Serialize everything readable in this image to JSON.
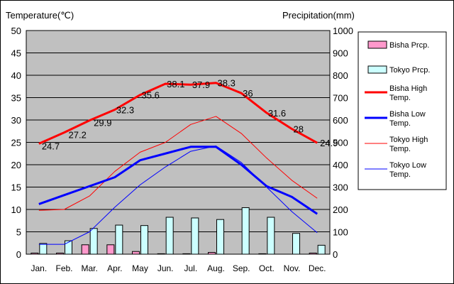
{
  "chart_data": {
    "type": "bar+line",
    "title": "",
    "left_axis_title": "Temperature(℃)",
    "right_axis_title": "Precipitation(mm)",
    "categories": [
      "Jan.",
      "Feb.",
      "Mar.",
      "Apr.",
      "May",
      "Jun.",
      "Jul.",
      "Aug.",
      "Sep.",
      "Oct.",
      "Nov.",
      "Dec."
    ],
    "left_ylim": [
      0,
      50
    ],
    "left_ticks": [
      "0",
      "5",
      "10",
      "15",
      "20",
      "25",
      "30",
      "35",
      "40",
      "45",
      "50"
    ],
    "right_ylim": [
      0,
      1000
    ],
    "right_ticks": [
      "0",
      "100",
      "200",
      "300",
      "400",
      "500",
      "600",
      "700",
      "800",
      "900",
      "1000"
    ],
    "grid": "horizontal",
    "plot_background": "#c0c0c0",
    "legend_position": "right",
    "bars": [
      {
        "name": "Bisha Prcp.",
        "color": "#ff99cc",
        "values": [
          5,
          5,
          42,
          42,
          12,
          2,
          2,
          8,
          0,
          2,
          0,
          5
        ]
      },
      {
        "name": "Tokyo Prcp.",
        "color": "#ccffff",
        "values": [
          48,
          60,
          115,
          130,
          128,
          165,
          162,
          155,
          208,
          165,
          93,
          40
        ]
      }
    ],
    "lines": [
      {
        "name": "Bisha High Temp.",
        "color": "#ff0000",
        "width": 3,
        "values": [
          24.7,
          27.2,
          29.9,
          32.3,
          35.6,
          38.1,
          37.9,
          38.3,
          36,
          31.6,
          28,
          24.9
        ],
        "labels": [
          "24.7",
          "27.2",
          "29.9",
          "32.3",
          "35.6",
          "38.1",
          "37.9",
          "38.3",
          "36",
          "31.6",
          "28",
          "24.9"
        ]
      },
      {
        "name": "Bisha Low Temp.",
        "color": "#0000ff",
        "width": 3,
        "values": [
          11.2,
          13.2,
          15.2,
          17.2,
          21,
          22.5,
          24,
          24,
          20,
          15.2,
          12.8,
          9
        ]
      },
      {
        "name": "Tokyo High Temp.",
        "color": "#ff0000",
        "width": 1,
        "values": [
          9.8,
          10,
          13,
          18.5,
          22.8,
          25,
          29,
          30.8,
          27,
          21.5,
          16.5,
          12.5
        ]
      },
      {
        "name": "Tokyo Low Temp.",
        "color": "#0000ff",
        "width": 1,
        "values": [
          2.2,
          2.2,
          5,
          10.5,
          15.5,
          19.5,
          23,
          24.2,
          20.5,
          15,
          9.5,
          4.8
        ]
      }
    ],
    "legend_labels": [
      [
        "Bisha Prcp."
      ],
      [
        "Tokyo Prcp."
      ],
      [
        "Bisha High",
        "Temp."
      ],
      [
        "Bisha Low",
        "Temp."
      ],
      [
        "Tokyo High",
        "Temp."
      ],
      [
        "Tokyo Low",
        "Temp."
      ]
    ]
  }
}
